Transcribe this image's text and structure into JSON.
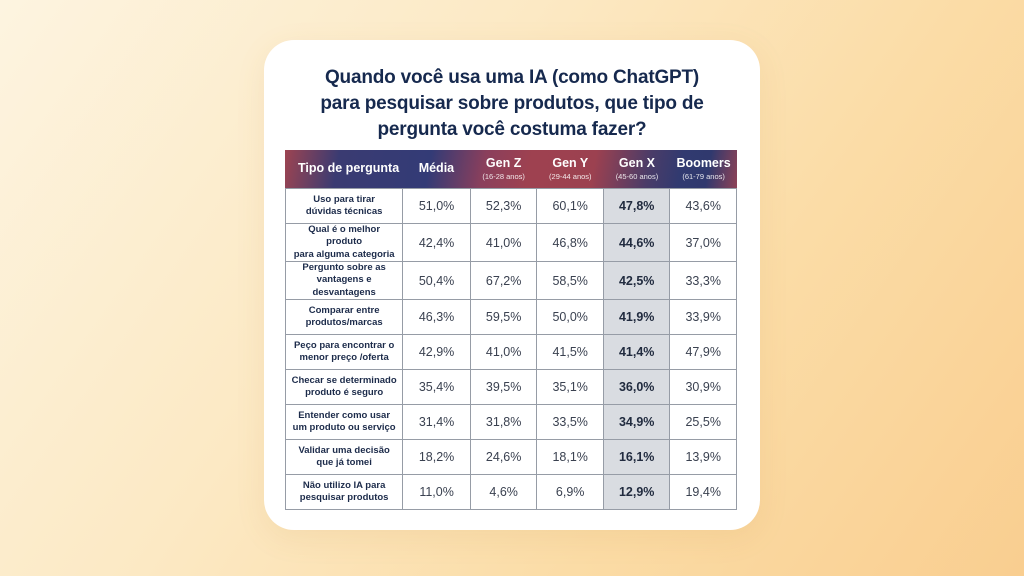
{
  "page": {
    "title_lines": [
      "Quando você usa uma IA (como ChatGPT)",
      "para pesquisar sobre produtos, que tipo de",
      "pergunta você costuma fazer?"
    ]
  },
  "table": {
    "columns": [
      {
        "label": "Tipo de pergunta",
        "sublabel": ""
      },
      {
        "label": "Média",
        "sublabel": ""
      },
      {
        "label": "Gen Z",
        "sublabel": "(16-28 anos)"
      },
      {
        "label": "Gen Y",
        "sublabel": "(29-44 anos)"
      },
      {
        "label": "Gen X",
        "sublabel": "(45-60 anos)"
      },
      {
        "label": "Boomers",
        "sublabel": "(61-79 anos)"
      }
    ],
    "rows": [
      {
        "label_lines": [
          "Uso para tirar",
          "dúvidas técnicas"
        ],
        "values": [
          "51,0%",
          "52,3%",
          "60,1%",
          "47,8%",
          "43,6%"
        ]
      },
      {
        "label_lines": [
          "Qual é o melhor produto",
          "para alguma categoria"
        ],
        "values": [
          "42,4%",
          "41,0%",
          "46,8%",
          "44,6%",
          "37,0%"
        ]
      },
      {
        "label_lines": [
          "Pergunto sobre as",
          "vantagens e desvantagens"
        ],
        "values": [
          "50,4%",
          "67,2%",
          "58,5%",
          "42,5%",
          "33,3%"
        ]
      },
      {
        "label_lines": [
          "Comparar entre",
          "produtos/marcas"
        ],
        "values": [
          "46,3%",
          "59,5%",
          "50,0%",
          "41,9%",
          "33,9%"
        ]
      },
      {
        "label_lines": [
          "Peço para encontrar o",
          "menor preço /oferta"
        ],
        "values": [
          "42,9%",
          "41,0%",
          "41,5%",
          "41,4%",
          "47,9%"
        ]
      },
      {
        "label_lines": [
          "Checar se determinado",
          "produto é seguro"
        ],
        "values": [
          "35,4%",
          "39,5%",
          "35,1%",
          "36,0%",
          "30,9%"
        ]
      },
      {
        "label_lines": [
          "Entender como usar",
          "um produto ou serviço"
        ],
        "values": [
          "31,4%",
          "31,8%",
          "33,5%",
          "34,9%",
          "25,5%"
        ]
      },
      {
        "label_lines": [
          "Validar uma decisão",
          "que já tomei"
        ],
        "values": [
          "18,2%",
          "24,6%",
          "18,1%",
          "16,1%",
          "13,9%"
        ]
      },
      {
        "label_lines": [
          "Não utilizo IA para",
          "pesquisar produtos"
        ],
        "values": [
          "11,0%",
          "4,6%",
          "6,9%",
          "12,9%",
          "19,4%"
        ]
      }
    ]
  },
  "chart_data": {
    "type": "table",
    "title": "Quando você usa uma IA (como ChatGPT) para pesquisar sobre produtos, que tipo de pergunta você costuma fazer?",
    "columns": [
      "Tipo de pergunta",
      "Média",
      "Gen Z (16-28 anos)",
      "Gen Y (29-44 anos)",
      "Gen X (45-60 anos)",
      "Boomers (61-79 anos)"
    ],
    "unit": "%",
    "decimal_separator": ",",
    "highlighted_column": "Gen X (45-60 anos)",
    "rows": [
      {
        "label": "Uso para tirar dúvidas técnicas",
        "media": 51.0,
        "gen_z": 52.3,
        "gen_y": 60.1,
        "gen_x": 47.8,
        "boomers": 43.6
      },
      {
        "label": "Qual é o melhor produto para alguma categoria",
        "media": 42.4,
        "gen_z": 41.0,
        "gen_y": 46.8,
        "gen_x": 44.6,
        "boomers": 37.0
      },
      {
        "label": "Pergunto sobre as vantagens e desvantagens",
        "media": 50.4,
        "gen_z": 67.2,
        "gen_y": 58.5,
        "gen_x": 42.5,
        "boomers": 33.3
      },
      {
        "label": "Comparar entre produtos/marcas",
        "media": 46.3,
        "gen_z": 59.5,
        "gen_y": 50.0,
        "gen_x": 41.9,
        "boomers": 33.9
      },
      {
        "label": "Peço para encontrar o menor preço /oferta",
        "media": 42.9,
        "gen_z": 41.0,
        "gen_y": 41.5,
        "gen_x": 41.4,
        "boomers": 47.9
      },
      {
        "label": "Checar se determinado produto é seguro",
        "media": 35.4,
        "gen_z": 39.5,
        "gen_y": 35.1,
        "gen_x": 36.0,
        "boomers": 30.9
      },
      {
        "label": "Entender como usar um produto ou serviço",
        "media": 31.4,
        "gen_z": 31.8,
        "gen_y": 33.5,
        "gen_x": 34.9,
        "boomers": 25.5
      },
      {
        "label": "Validar uma decisão que já tomei",
        "media": 18.2,
        "gen_z": 24.6,
        "gen_y": 18.1,
        "gen_x": 16.1,
        "boomers": 13.9
      },
      {
        "label": "Não utilizo IA para pesquisar produtos",
        "media": 11.0,
        "gen_z": 4.6,
        "gen_y": 6.9,
        "gen_x": 12.9,
        "boomers": 19.4
      }
    ]
  },
  "colors": {
    "background_top_left": "#FDF4E0",
    "background_bottom_right": "#F9CE90",
    "card": "#FFFFFF",
    "title_text": "#16294E",
    "header_red": "#9D4451",
    "header_blue": "#333B76",
    "header_text": "#FFFFFF",
    "cell_border": "#969CA6",
    "highlight_cell_bg": "#D9DCE1",
    "label_text": "#1C2B4A",
    "value_text": "#3A4150"
  }
}
